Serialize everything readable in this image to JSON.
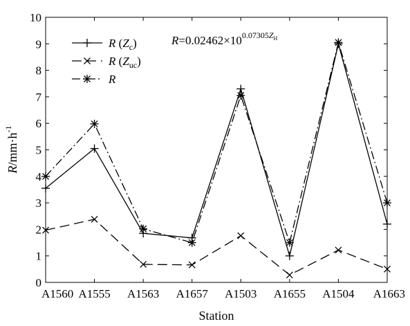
{
  "chart_data": {
    "type": "line",
    "xlabel": "Station",
    "ylabel": {
      "var": "R",
      "rest": "/mm·h",
      "sup": "-1"
    },
    "categories": [
      "A1560",
      "A1555",
      "A1563",
      "A1657",
      "A1503",
      "A1655",
      "A1504",
      "A1663"
    ],
    "ylim": [
      0,
      10
    ],
    "yticks": [
      "0",
      "1",
      "2",
      "3",
      "4",
      "5",
      "6",
      "7",
      "8",
      "9",
      "10"
    ],
    "grid": false,
    "legend_position": "top-left",
    "formula": {
      "lhs": "R",
      "mid": "=0.02462×10",
      "sup": "0.07305",
      "sup_var": "Z",
      "sup_sub": "H"
    },
    "series": [
      {
        "id": "Rc",
        "label": {
          "var": "R",
          "open": " (",
          "svar": "Z",
          "ssub": "c",
          "close": ")"
        },
        "marker": "plus",
        "dash": "",
        "values": [
          3.55,
          5.05,
          1.85,
          1.68,
          7.3,
          1.0,
          9.0,
          2.2
        ]
      },
      {
        "id": "Ruc",
        "label": {
          "var": "R",
          "open": " (",
          "svar": "Z",
          "ssub": "uc",
          "close": ")"
        },
        "marker": "x",
        "dash": "14,7",
        "values": [
          1.97,
          2.38,
          0.68,
          0.66,
          1.76,
          0.28,
          1.22,
          0.5
        ]
      },
      {
        "id": "R",
        "label": {
          "var": "R"
        },
        "marker": "star",
        "dash": "12,4,2,4",
        "values": [
          4.0,
          5.98,
          2.02,
          1.5,
          7.05,
          1.5,
          9.05,
          3.0
        ]
      }
    ]
  }
}
